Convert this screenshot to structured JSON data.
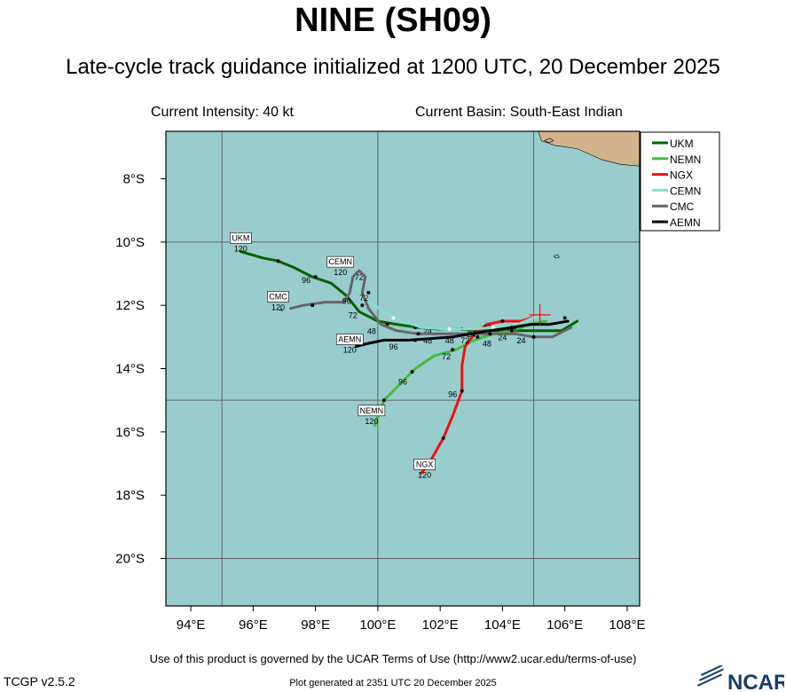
{
  "header": {
    "title": "NINE (SH09)",
    "subtitle": "Late-cycle track guidance initialized at 1200 UTC, 20 December 2025",
    "current_intensity": "Current Intensity: 40 kt",
    "current_basin": "Current Basin: South-East Indian"
  },
  "footer": {
    "terms": "Use of this product is governed by the UCAR Terms of Use (http://www2.ucar.edu/terms-of-use)",
    "version": "TCGP v2.5.2",
    "generated": "Plot generated at 2351 UTC   20 December 2025",
    "logo_text": "NCAR"
  },
  "map": {
    "lon_range": [
      93.2,
      108.4
    ],
    "lat_range": [
      -21.5,
      -6.5
    ],
    "lon_ticks": [
      94,
      96,
      98,
      100,
      102,
      104,
      106,
      108
    ],
    "lon_tick_labels": [
      "94°E",
      "96°E",
      "98°E",
      "100°E",
      "102°E",
      "104°E",
      "106°E",
      "108°E"
    ],
    "lat_ticks": [
      -8,
      -10,
      -12,
      -14,
      -16,
      -18,
      -20
    ],
    "lat_tick_labels": [
      "8°S",
      "10°S",
      "12°S",
      "14°S",
      "16°S",
      "18°S",
      "20°S"
    ],
    "grid_lons": [
      95,
      100,
      105
    ],
    "grid_lats": [
      -10,
      -15,
      -20
    ],
    "ocean_color": "#99cccc",
    "land_color": "#d2b48c",
    "storm_position": [
      105.2,
      -12.3
    ]
  },
  "legend": {
    "placement": "top-right",
    "entries": [
      {
        "name": "UKM",
        "color": "#006400"
      },
      {
        "name": "NEMN",
        "color": "#44bb44"
      },
      {
        "name": "NGX",
        "color": "#ee1111"
      },
      {
        "name": "CEMN",
        "color": "#88ddcc"
      },
      {
        "name": "CMC",
        "color": "#666666"
      },
      {
        "name": "AEMN",
        "color": "#000000"
      }
    ]
  },
  "tracks": [
    {
      "name": "UKM",
      "color": "#006400",
      "points": [
        [
          106.4,
          -12.5
        ],
        [
          105.9,
          -12.8
        ],
        [
          105.2,
          -12.8
        ],
        [
          104.5,
          -12.8
        ],
        [
          103.8,
          -12.8
        ],
        [
          103.2,
          -12.8
        ],
        [
          102.6,
          -12.75
        ],
        [
          101.9,
          -12.75
        ],
        [
          101.3,
          -12.7
        ],
        [
          100.6,
          -12.6
        ],
        [
          100.0,
          -12.5
        ],
        [
          99.4,
          -12.2
        ],
        [
          99.0,
          -11.7
        ],
        [
          98.5,
          -11.3
        ],
        [
          97.9,
          -11.1
        ],
        [
          97.3,
          -10.8
        ],
        [
          96.8,
          -10.6
        ],
        [
          96.3,
          -10.5
        ],
        [
          95.6,
          -10.3
        ]
      ],
      "markers": [
        [
          96.8,
          -10.6
        ],
        [
          98.0,
          -11.1
        ],
        [
          99.5,
          -12.0
        ],
        [
          100.3,
          -12.6
        ],
        [
          101.2,
          -12.7
        ],
        [
          102.7,
          -12.75
        ]
      ],
      "hour_labels": [
        {
          "text": "96",
          "at": [
            97.7,
            -11.3
          ]
        },
        {
          "text": "72",
          "at": [
            99.2,
            -12.4
          ]
        },
        {
          "text": "48",
          "at": [
            99.8,
            -12.9
          ]
        },
        {
          "text": "24",
          "at": [
            101.6,
            -12.9
          ]
        }
      ],
      "end_label": {
        "text": "UKM",
        "hour": "120",
        "at": [
          95.6,
          -10.1
        ]
      }
    },
    {
      "name": "NEMN",
      "color": "#44bb44",
      "points": [
        [
          105.4,
          -12.5
        ],
        [
          104.9,
          -12.6
        ],
        [
          104.3,
          -12.8
        ],
        [
          103.7,
          -12.9
        ],
        [
          103.1,
          -13.1
        ],
        [
          102.5,
          -13.4
        ],
        [
          101.8,
          -13.6
        ],
        [
          101.2,
          -14.0
        ],
        [
          100.7,
          -14.5
        ],
        [
          100.2,
          -15.0
        ],
        [
          99.9,
          -15.8
        ]
      ],
      "markers": [
        [
          104.3,
          -12.8
        ],
        [
          103.2,
          -13.0
        ],
        [
          102.4,
          -13.4
        ],
        [
          101.1,
          -14.1
        ],
        [
          100.2,
          -15.0
        ]
      ],
      "hour_labels": [
        {
          "text": "24",
          "at": [
            104.0,
            -13.1
          ]
        },
        {
          "text": "48",
          "at": [
            103.5,
            -13.3
          ]
        },
        {
          "text": "72",
          "at": [
            102.2,
            -13.7
          ]
        },
        {
          "text": "96",
          "at": [
            100.8,
            -14.5
          ]
        }
      ],
      "end_label": {
        "text": "NEMN",
        "hour": "120",
        "at": [
          99.8,
          -15.55
        ]
      }
    },
    {
      "name": "NGX",
      "color": "#ee1111",
      "points": [
        [
          105.2,
          -12.3
        ],
        [
          104.6,
          -12.5
        ],
        [
          104.0,
          -12.5
        ],
        [
          103.5,
          -12.6
        ],
        [
          103.1,
          -12.9
        ],
        [
          102.8,
          -13.3
        ],
        [
          102.7,
          -13.9
        ],
        [
          102.7,
          -14.7
        ],
        [
          102.4,
          -15.5
        ],
        [
          102.1,
          -16.2
        ],
        [
          101.7,
          -16.9
        ],
        [
          101.4,
          -17.3
        ]
      ],
      "markers": [
        [
          104.0,
          -12.5
        ],
        [
          103.1,
          -12.9
        ],
        [
          102.7,
          -14.7
        ],
        [
          102.1,
          -16.2
        ]
      ],
      "hour_labels": [
        {
          "text": "24",
          "at": [
            104.3,
            -12.8
          ]
        },
        {
          "text": "48",
          "at": [
            103.5,
            -12.8
          ]
        },
        {
          "text": "72",
          "at": [
            102.8,
            -13.2
          ]
        },
        {
          "text": "96",
          "at": [
            102.4,
            -14.9
          ]
        }
      ],
      "end_label": {
        "text": "NGX",
        "hour": "120",
        "at": [
          101.5,
          -17.25
        ]
      }
    },
    {
      "name": "CEMN",
      "color": "#88ddcc",
      "points": [
        [
          105.2,
          -12.3
        ],
        [
          104.5,
          -12.6
        ],
        [
          103.8,
          -12.7
        ],
        [
          103.0,
          -12.75
        ],
        [
          102.2,
          -12.75
        ],
        [
          101.4,
          -12.7
        ],
        [
          100.8,
          -12.5
        ],
        [
          100.2,
          -12.2
        ],
        [
          99.6,
          -11.8
        ],
        [
          99.3,
          -11.4
        ],
        [
          99.1,
          -11.2
        ]
      ],
      "markers": [
        [
          103.7,
          -12.7
        ],
        [
          102.3,
          -12.75
        ],
        [
          100.5,
          -12.4
        ],
        [
          99.6,
          -11.7
        ]
      ],
      "hour_labels": [
        {
          "text": "72",
          "at": [
            99.4,
            -11.2
          ]
        }
      ],
      "end_label": {
        "text": "CEMN",
        "hour": "120",
        "at": [
          98.8,
          -10.85
        ]
      }
    },
    {
      "name": "CMC",
      "color": "#666666",
      "points": [
        [
          106.2,
          -12.7
        ],
        [
          105.6,
          -13.0
        ],
        [
          105.0,
          -13.0
        ],
        [
          104.4,
          -12.9
        ],
        [
          103.6,
          -12.9
        ],
        [
          102.8,
          -12.9
        ],
        [
          102.0,
          -12.9
        ],
        [
          101.3,
          -12.9
        ],
        [
          100.6,
          -12.8
        ],
        [
          100.1,
          -12.6
        ],
        [
          99.7,
          -12.1
        ],
        [
          99.5,
          -11.6
        ],
        [
          99.6,
          -11.1
        ],
        [
          99.4,
          -10.9
        ],
        [
          99.2,
          -11.1
        ],
        [
          99.1,
          -11.6
        ],
        [
          98.9,
          -11.9
        ],
        [
          98.3,
          -11.9
        ],
        [
          97.6,
          -12.0
        ],
        [
          97.2,
          -12.1
        ]
      ],
      "markers": [
        [
          105.0,
          -13.0
        ],
        [
          103.6,
          -12.9
        ],
        [
          101.3,
          -12.9
        ],
        [
          99.7,
          -11.6
        ],
        [
          97.9,
          -12.0
        ]
      ],
      "hour_labels": [
        {
          "text": "24",
          "at": [
            104.6,
            -13.2
          ]
        },
        {
          "text": "48",
          "at": [
            102.3,
            -13.2
          ]
        },
        {
          "text": "72",
          "at": [
            99.55,
            -11.85
          ]
        },
        {
          "text": "96",
          "at": [
            99.0,
            -11.95
          ]
        }
      ],
      "end_label": {
        "text": "CMC",
        "hour": "120",
        "at": [
          96.8,
          -11.95
        ]
      }
    },
    {
      "name": "AEMN",
      "color": "#000000",
      "points": [
        [
          106.1,
          -12.5
        ],
        [
          105.5,
          -12.6
        ],
        [
          104.9,
          -12.6
        ],
        [
          104.3,
          -12.7
        ],
        [
          103.6,
          -12.8
        ],
        [
          103.0,
          -12.9
        ],
        [
          102.4,
          -13.0
        ],
        [
          101.7,
          -13.05
        ],
        [
          101.0,
          -13.1
        ],
        [
          100.2,
          -13.1
        ],
        [
          99.7,
          -13.2
        ],
        [
          99.3,
          -13.3
        ]
      ],
      "markers": [
        [
          106.0,
          -12.4
        ],
        [
          104.3,
          -12.7
        ],
        [
          103.0,
          -12.9
        ],
        [
          101.2,
          -13.1
        ]
      ],
      "hour_labels": [
        {
          "text": "24",
          "at": [
            103.0,
            -13.0
          ]
        },
        {
          "text": "48",
          "at": [
            101.6,
            -13.2
          ]
        },
        {
          "text": "96",
          "at": [
            100.5,
            -13.4
          ]
        }
      ],
      "end_label": {
        "text": "AEMN",
        "hour": "120",
        "at": [
          99.1,
          -13.3
        ]
      }
    }
  ]
}
